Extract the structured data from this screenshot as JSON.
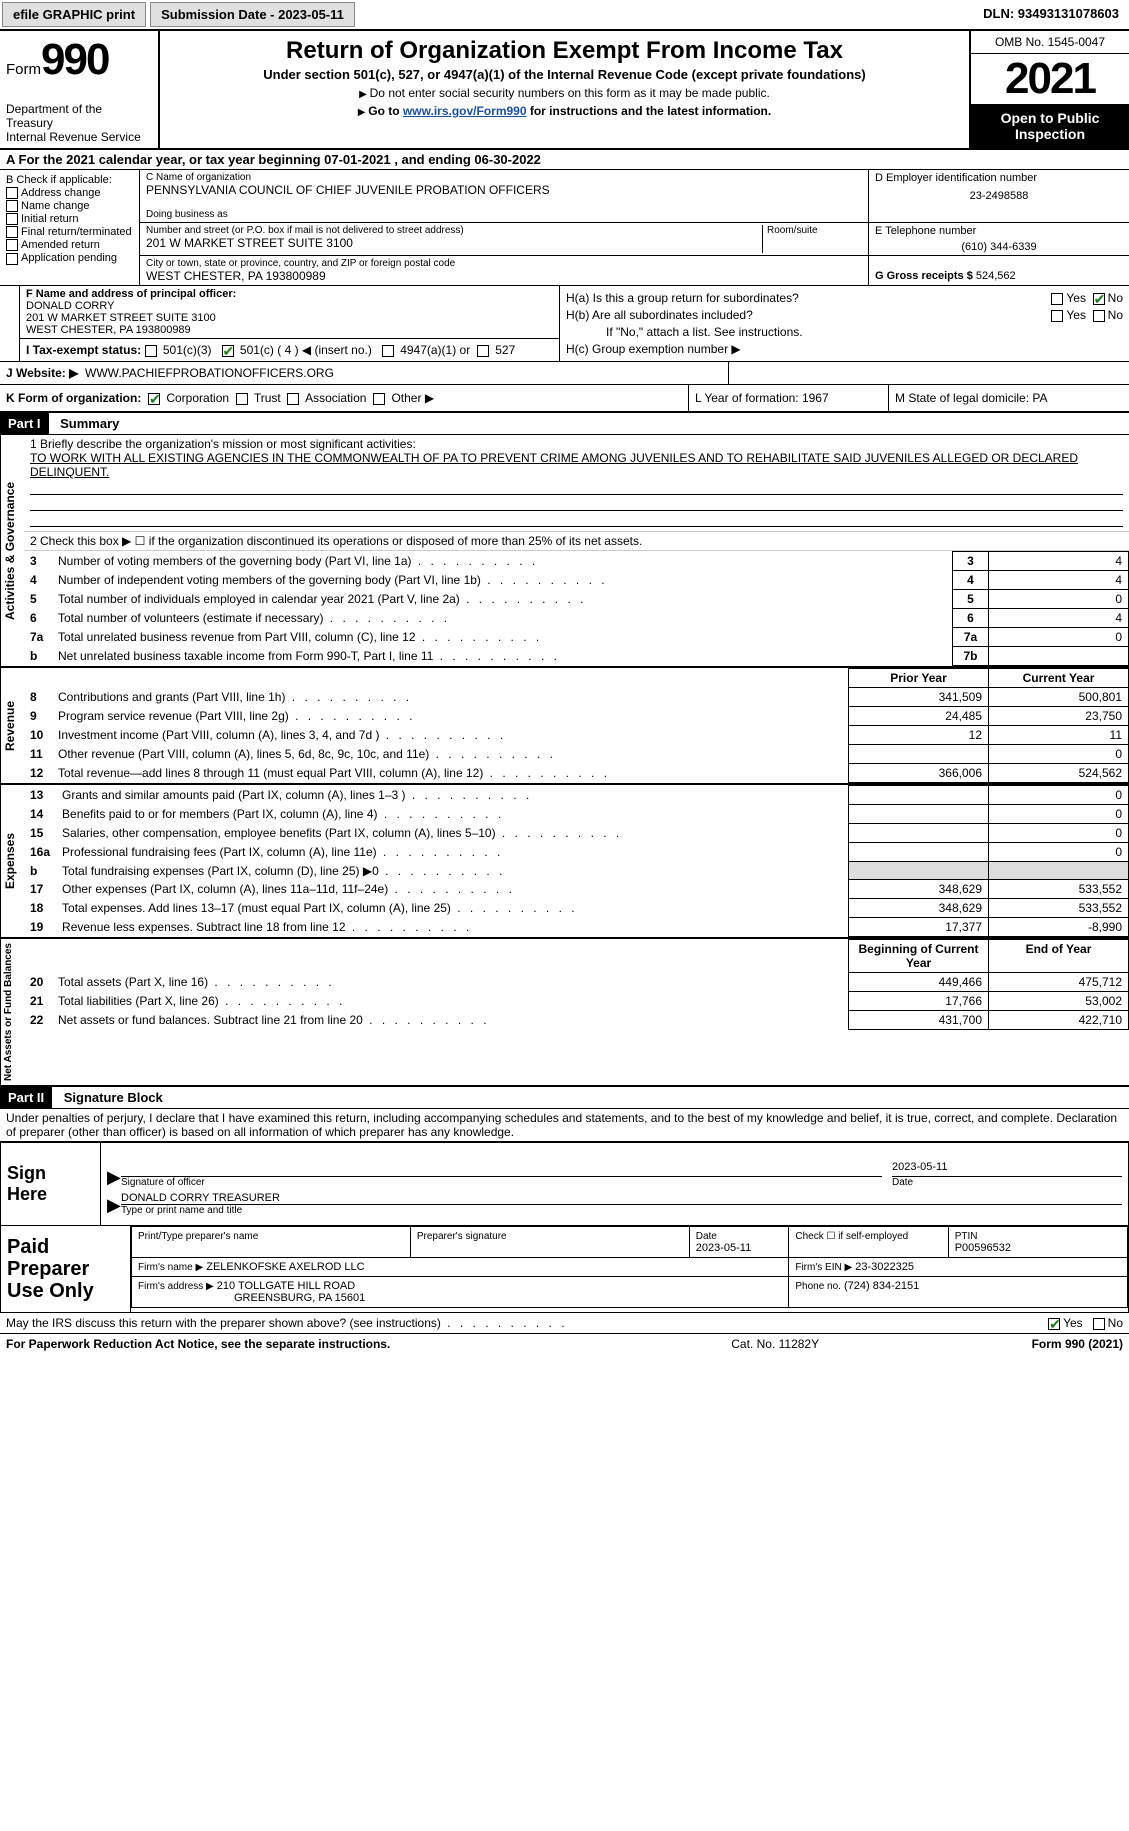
{
  "topbar": {
    "efile": "efile GRAPHIC print",
    "submission_label": "Submission Date - 2023-05-11",
    "dln": "DLN: 93493131078603"
  },
  "header": {
    "form_word": "Form",
    "form_num": "990",
    "dept": "Department of the Treasury",
    "irs": "Internal Revenue Service",
    "title": "Return of Organization Exempt From Income Tax",
    "sub": "Under section 501(c), 527, or 4947(a)(1) of the Internal Revenue Code (except private foundations)",
    "note1": "Do not enter social security numbers on this form as it may be made public.",
    "note2_pre": "Go to ",
    "note2_link": "www.irs.gov/Form990",
    "note2_post": " for instructions and the latest information.",
    "omb": "OMB No. 1545-0047",
    "year": "2021",
    "inspect1": "Open to Public",
    "inspect2": "Inspection"
  },
  "rowA": "A For the 2021 calendar year, or tax year beginning 07-01-2021    , and ending 06-30-2022",
  "colB": {
    "title": "B Check if applicable:",
    "items": [
      "Address change",
      "Name change",
      "Initial return",
      "Final return/terminated",
      "Amended return",
      "Application pending"
    ]
  },
  "C": {
    "name_label": "C Name of organization",
    "name": "PENNSYLVANIA COUNCIL OF CHIEF JUVENILE PROBATION OFFICERS",
    "dba_label": "Doing business as",
    "addr_label": "Number and street (or P.O. box if mail is not delivered to street address)",
    "room_label": "Room/suite",
    "addr": "201 W MARKET STREET SUITE 3100",
    "city_label": "City or town, state or province, country, and ZIP or foreign postal code",
    "city": "WEST CHESTER, PA  193800989"
  },
  "D": {
    "label": "D Employer identification number",
    "value": "23-2498588"
  },
  "E": {
    "label": "E Telephone number",
    "value": "(610) 344-6339"
  },
  "G": {
    "label": "G Gross receipts $",
    "value": "524,562"
  },
  "F": {
    "label": "F  Name and address of principal officer:",
    "name": "DONALD CORRY",
    "addr1": "201 W MARKET STREET SUITE 3100",
    "addr2": "WEST CHESTER, PA  193800989"
  },
  "I": {
    "label": "I   Tax-exempt status:",
    "o1": "501(c)(3)",
    "o2": "501(c) ( 4 ) ◀ (insert no.)",
    "o3": "4947(a)(1) or",
    "o4": "527"
  },
  "J": {
    "label": "J   Website: ▶",
    "value": "WWW.PACHIEFPROBATIONOFFICERS.ORG"
  },
  "H": {
    "a": "H(a)  Is this a group return for subordinates?",
    "b": "H(b)  Are all subordinates included?",
    "bnote": "If \"No,\" attach a list. See instructions.",
    "c": "H(c)  Group exemption number ▶",
    "yes": "Yes",
    "no": "No"
  },
  "K": {
    "label": "K Form of organization:",
    "o1": "Corporation",
    "o2": "Trust",
    "o3": "Association",
    "o4": "Other ▶",
    "L": "L Year of formation: 1967",
    "M": "M State of legal domicile: PA"
  },
  "part1": {
    "hdr": "Part I",
    "title": "Summary",
    "side1": "Activities & Governance",
    "side2": "Revenue",
    "side3": "Expenses",
    "side4": "Net Assets or Fund Balances",
    "l1_label": "1   Briefly describe the organization's mission or most significant activities:",
    "l1_text": "TO WORK WITH ALL EXISTING AGENCIES IN THE COMMONWEALTH OF PA TO PREVENT CRIME AMONG JUVENILES AND TO REHABILITATE SAID JUVENILES ALLEGED OR DECLARED DELINQUENT.",
    "l2": "2   Check this box ▶ ☐  if the organization discontinued its operations or disposed of more than 25% of its net assets.",
    "rows_gov": [
      {
        "n": "3",
        "d": "Number of voting members of the governing body (Part VI, line 1a)",
        "b": "3",
        "v": "4"
      },
      {
        "n": "4",
        "d": "Number of independent voting members of the governing body (Part VI, line 1b)",
        "b": "4",
        "v": "4"
      },
      {
        "n": "5",
        "d": "Total number of individuals employed in calendar year 2021 (Part V, line 2a)",
        "b": "5",
        "v": "0"
      },
      {
        "n": "6",
        "d": "Total number of volunteers (estimate if necessary)",
        "b": "6",
        "v": "4"
      },
      {
        "n": "7a",
        "d": "Total unrelated business revenue from Part VIII, column (C), line 12",
        "b": "7a",
        "v": "0"
      },
      {
        "n": "b",
        "d": "Net unrelated business taxable income from Form 990-T, Part I, line 11",
        "b": "7b",
        "v": ""
      }
    ],
    "col_prior": "Prior Year",
    "col_curr": "Current Year",
    "rows_rev": [
      {
        "n": "8",
        "d": "Contributions and grants (Part VIII, line 1h)",
        "p": "341,509",
        "c": "500,801"
      },
      {
        "n": "9",
        "d": "Program service revenue (Part VIII, line 2g)",
        "p": "24,485",
        "c": "23,750"
      },
      {
        "n": "10",
        "d": "Investment income (Part VIII, column (A), lines 3, 4, and 7d )",
        "p": "12",
        "c": "11"
      },
      {
        "n": "11",
        "d": "Other revenue (Part VIII, column (A), lines 5, 6d, 8c, 9c, 10c, and 11e)",
        "p": "",
        "c": "0"
      },
      {
        "n": "12",
        "d": "Total revenue—add lines 8 through 11 (must equal Part VIII, column (A), line 12)",
        "p": "366,006",
        "c": "524,562"
      }
    ],
    "rows_exp": [
      {
        "n": "13",
        "d": "Grants and similar amounts paid (Part IX, column (A), lines 1–3 )",
        "p": "",
        "c": "0"
      },
      {
        "n": "14",
        "d": "Benefits paid to or for members (Part IX, column (A), line 4)",
        "p": "",
        "c": "0"
      },
      {
        "n": "15",
        "d": "Salaries, other compensation, employee benefits (Part IX, column (A), lines 5–10)",
        "p": "",
        "c": "0"
      },
      {
        "n": "16a",
        "d": "Professional fundraising fees (Part IX, column (A), line 11e)",
        "p": "",
        "c": "0"
      },
      {
        "n": "b",
        "d": "Total fundraising expenses (Part IX, column (D), line 25) ▶0",
        "p": "SHADE",
        "c": "SHADE"
      },
      {
        "n": "17",
        "d": "Other expenses (Part IX, column (A), lines 11a–11d, 11f–24e)",
        "p": "348,629",
        "c": "533,552"
      },
      {
        "n": "18",
        "d": "Total expenses. Add lines 13–17 (must equal Part IX, column (A), line 25)",
        "p": "348,629",
        "c": "533,552"
      },
      {
        "n": "19",
        "d": "Revenue less expenses. Subtract line 18 from line 12",
        "p": "17,377",
        "c": "-8,990"
      }
    ],
    "col_beg": "Beginning of Current Year",
    "col_end": "End of Year",
    "rows_net": [
      {
        "n": "20",
        "d": "Total assets (Part X, line 16)",
        "p": "449,466",
        "c": "475,712"
      },
      {
        "n": "21",
        "d": "Total liabilities (Part X, line 26)",
        "p": "17,766",
        "c": "53,002"
      },
      {
        "n": "22",
        "d": "Net assets or fund balances. Subtract line 21 from line 20",
        "p": "431,700",
        "c": "422,710"
      }
    ]
  },
  "part2": {
    "hdr": "Part II",
    "title": "Signature Block",
    "decl": "Under penalties of perjury, I declare that I have examined this return, including accompanying schedules and statements, and to the best of my knowledge and belief, it is true, correct, and complete. Declaration of preparer (other than officer) is based on all information of which preparer has any knowledge.",
    "sign_here": "Sign Here",
    "sig_officer_label": "Signature of officer",
    "sig_date": "2023-05-11",
    "sig_date_label": "Date",
    "sig_name": "DONALD CORRY TREASURER",
    "sig_name_label": "Type or print name and title",
    "paid": "Paid Preparer Use Only",
    "pp_name_label": "Print/Type preparer's name",
    "pp_sig_label": "Preparer's signature",
    "pp_date_label": "Date",
    "pp_date": "2023-05-11",
    "pp_self": "Check ☐ if self-employed",
    "ptin_label": "PTIN",
    "ptin": "P00596532",
    "firm_name_label": "Firm's name    ▶",
    "firm_name": "ZELENKOFSKE AXELROD LLC",
    "firm_ein_label": "Firm's EIN ▶",
    "firm_ein": "23-3022325",
    "firm_addr_label": "Firm's address ▶",
    "firm_addr1": "210 TOLLGATE HILL ROAD",
    "firm_addr2": "GREENSBURG, PA  15601",
    "phone_label": "Phone no.",
    "phone": "(724) 834-2151"
  },
  "footer": {
    "discuss": "May the IRS discuss this return with the preparer shown above? (see instructions)",
    "yes": "Yes",
    "no": "No",
    "pra": "For Paperwork Reduction Act Notice, see the separate instructions.",
    "cat": "Cat. No. 11282Y",
    "form": "Form 990 (2021)"
  }
}
